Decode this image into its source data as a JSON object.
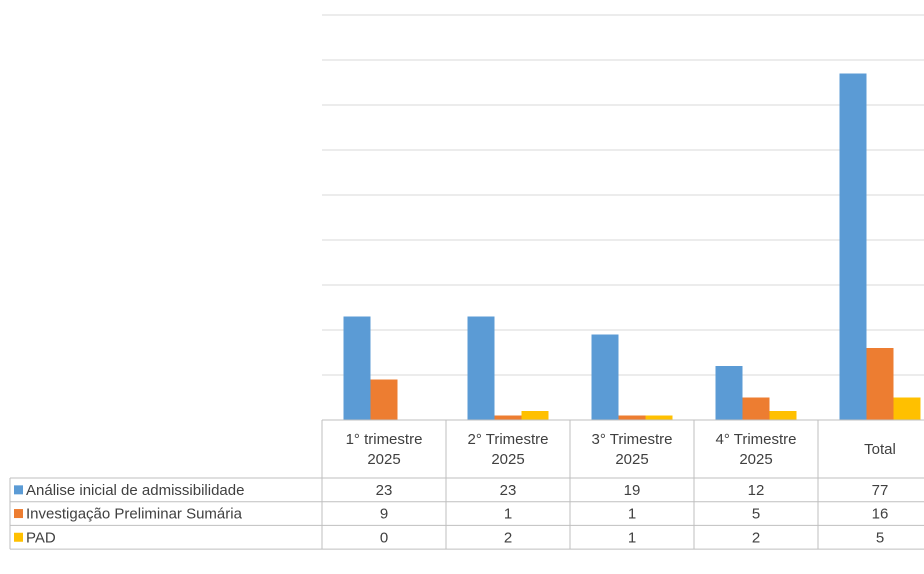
{
  "chart_data": {
    "type": "bar",
    "title": "",
    "xlabel": "",
    "ylabel": "",
    "ylim": [
      0,
      90
    ],
    "grid": true,
    "data_table": true,
    "categories": [
      [
        "1° trimestre",
        "2025"
      ],
      [
        "2° Trimestre",
        "2025"
      ],
      [
        "3° Trimestre",
        "2025"
      ],
      [
        "4° Trimestre",
        "2025"
      ],
      [
        "Total"
      ]
    ],
    "series": [
      {
        "name": "Análise inicial de admissibilidade",
        "color": "#5b9bd5",
        "values": [
          23,
          23,
          19,
          12,
          77
        ]
      },
      {
        "name": "Investigação Preliminar Sumária",
        "color": "#ed7d31",
        "values": [
          9,
          1,
          1,
          5,
          16
        ]
      },
      {
        "name": "PAD",
        "color": "#ffc000",
        "values": [
          0,
          2,
          1,
          2,
          5
        ]
      }
    ]
  }
}
